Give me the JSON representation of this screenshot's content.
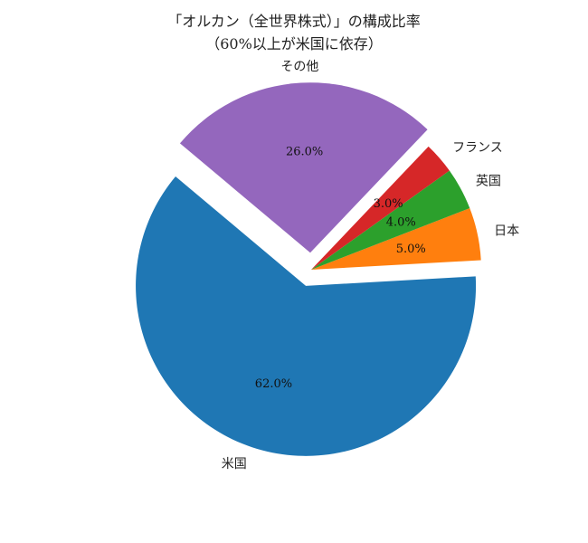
{
  "chart_data": {
    "type": "pie",
    "title_lines": [
      "「オルカン（全世界株式）」の構成比率",
      "（60%以上が米国に依存）"
    ],
    "categories": [
      "米国",
      "日本",
      "英国",
      "フランス",
      "その他"
    ],
    "values": [
      62.0,
      5.0,
      4.0,
      3.0,
      26.0
    ],
    "value_labels": [
      "62.0%",
      "5.0%",
      "4.0%",
      "3.0%",
      "26.0%"
    ],
    "colors": [
      "#1f77b4",
      "#ff7f0e",
      "#2ca02c",
      "#d62728",
      "#9467bd"
    ],
    "explode": [
      0.1,
      0,
      0,
      0,
      0.1
    ],
    "start_angle_deg": 140,
    "direction": "counterclockwise"
  }
}
